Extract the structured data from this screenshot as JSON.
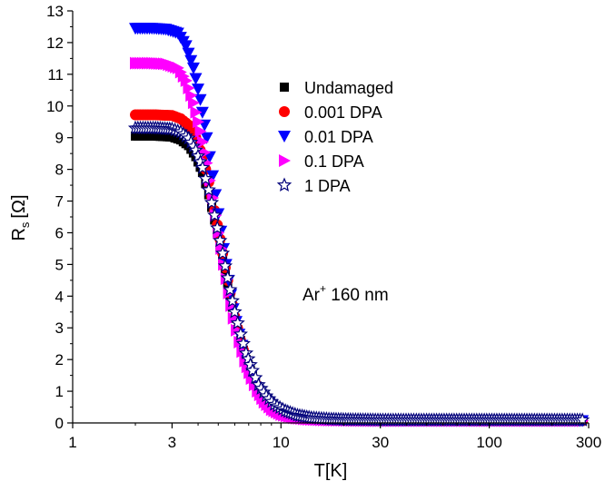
{
  "chart_data": {
    "type": "scatter",
    "title": "",
    "xlabel": "T[K]",
    "ylabel_main": "R",
    "ylabel_sub": "s",
    "ylabel_unit": "[Ω]",
    "xscale": "log",
    "xlim": [
      1,
      300
    ],
    "ylim": [
      0,
      13
    ],
    "xticks": [
      1,
      3,
      10,
      30,
      100,
      300
    ],
    "xtick_labels": [
      "1",
      "3",
      "10",
      "30",
      "100",
      "300"
    ],
    "yticks": [
      0,
      1,
      2,
      3,
      4,
      5,
      6,
      7,
      8,
      9,
      10,
      11,
      12,
      13
    ],
    "ytick_labels": [
      "0",
      "1",
      "2",
      "3",
      "4",
      "5",
      "6",
      "7",
      "8",
      "9",
      "10",
      "11",
      "12",
      "13"
    ],
    "grid": false,
    "legend_position": "top-right",
    "annotation": {
      "main": "Ar",
      "sup": "+",
      "rest": " 160 nm"
    },
    "series": [
      {
        "name": "Undamaged",
        "marker": "square",
        "color": "#000000",
        "x": [
          2,
          2.5,
          3,
          3.3,
          3.6,
          3.9,
          4.2,
          4.5,
          4.8,
          5.1,
          5.4,
          5.7,
          6,
          6.4,
          6.8,
          7.3,
          7.8,
          8.5,
          9.3,
          10.5,
          12,
          14,
          17,
          21,
          30,
          50,
          100,
          200,
          280
        ],
        "y": [
          9.05,
          9.05,
          9.02,
          8.93,
          8.75,
          8.4,
          7.9,
          7.2,
          6.4,
          5.6,
          4.8,
          4.0,
          3.3,
          2.6,
          2.0,
          1.5,
          1.1,
          0.75,
          0.5,
          0.32,
          0.2,
          0.14,
          0.1,
          0.08,
          0.07,
          0.07,
          0.07,
          0.07,
          0.07
        ]
      },
      {
        "name": "0.001 DPA",
        "marker": "circle",
        "color": "#ff0000",
        "x": [
          2,
          2.5,
          3,
          3.3,
          3.6,
          3.9,
          4.2,
          4.5,
          4.8,
          5.1,
          5.4,
          5.7,
          6,
          6.4,
          6.8,
          7.3,
          7.8,
          8.5,
          9.3,
          10.5,
          12,
          14,
          17,
          21,
          30,
          50,
          100,
          200,
          280
        ],
        "y": [
          9.72,
          9.72,
          9.7,
          9.6,
          9.4,
          9.0,
          8.4,
          7.6,
          6.7,
          5.8,
          4.9,
          4.1,
          3.35,
          2.6,
          2.0,
          1.45,
          1.05,
          0.7,
          0.45,
          0.28,
          0.17,
          0.12,
          0.09,
          0.08,
          0.07,
          0.07,
          0.07,
          0.07,
          0.07
        ]
      },
      {
        "name": "0.01 DPA",
        "marker": "triangle-down",
        "color": "#0000ff",
        "x": [
          2,
          2.4,
          2.8,
          3.2,
          3.5,
          3.8,
          4.1,
          4.4,
          4.7,
          5,
          5.3,
          5.6,
          5.9,
          6.3,
          6.7,
          7.2,
          7.7,
          8.3,
          9,
          10,
          11.5,
          13.5,
          16,
          20,
          30,
          50,
          100,
          200,
          280
        ],
        "y": [
          12.45,
          12.45,
          12.42,
          12.3,
          11.9,
          11.2,
          10.2,
          9.0,
          7.8,
          6.6,
          5.5,
          4.5,
          3.6,
          2.8,
          2.1,
          1.5,
          1.05,
          0.7,
          0.45,
          0.28,
          0.17,
          0.12,
          0.09,
          0.08,
          0.07,
          0.07,
          0.07,
          0.07,
          0.07
        ]
      },
      {
        "name": "0.1 DPA",
        "marker": "triangle-right",
        "color": "#ff00ff",
        "x": [
          2,
          2.4,
          2.8,
          3.2,
          3.5,
          3.8,
          4.1,
          4.4,
          4.7,
          5,
          5.3,
          5.6,
          5.9,
          6.3,
          6.7,
          7.2,
          7.7,
          8.3,
          9,
          10,
          11.5,
          13.5,
          16,
          20,
          30,
          50,
          100,
          200,
          280
        ],
        "y": [
          11.35,
          11.35,
          11.33,
          11.2,
          10.8,
          10.1,
          9.2,
          8.2,
          7.1,
          6.0,
          5.0,
          4.1,
          3.3,
          2.55,
          1.95,
          1.4,
          1.0,
          0.65,
          0.42,
          0.26,
          0.16,
          0.11,
          0.09,
          0.08,
          0.07,
          0.07,
          0.07,
          0.07,
          0.07
        ]
      },
      {
        "name": "1 DPA",
        "marker": "star",
        "color": "#00007a",
        "x": [
          2,
          2.5,
          3,
          3.3,
          3.6,
          3.9,
          4.2,
          4.5,
          4.8,
          5.1,
          5.4,
          5.7,
          6,
          6.4,
          6.8,
          7.3,
          7.8,
          8.5,
          9.3,
          10.5,
          12,
          14,
          17,
          21,
          30,
          50,
          100,
          200,
          280
        ],
        "y": [
          9.3,
          9.3,
          9.27,
          9.18,
          8.98,
          8.6,
          8.05,
          7.35,
          6.55,
          5.75,
          4.95,
          4.2,
          3.5,
          2.8,
          2.2,
          1.65,
          1.2,
          0.85,
          0.58,
          0.38,
          0.24,
          0.16,
          0.12,
          0.1,
          0.09,
          0.09,
          0.09,
          0.09,
          0.09
        ]
      }
    ]
  }
}
